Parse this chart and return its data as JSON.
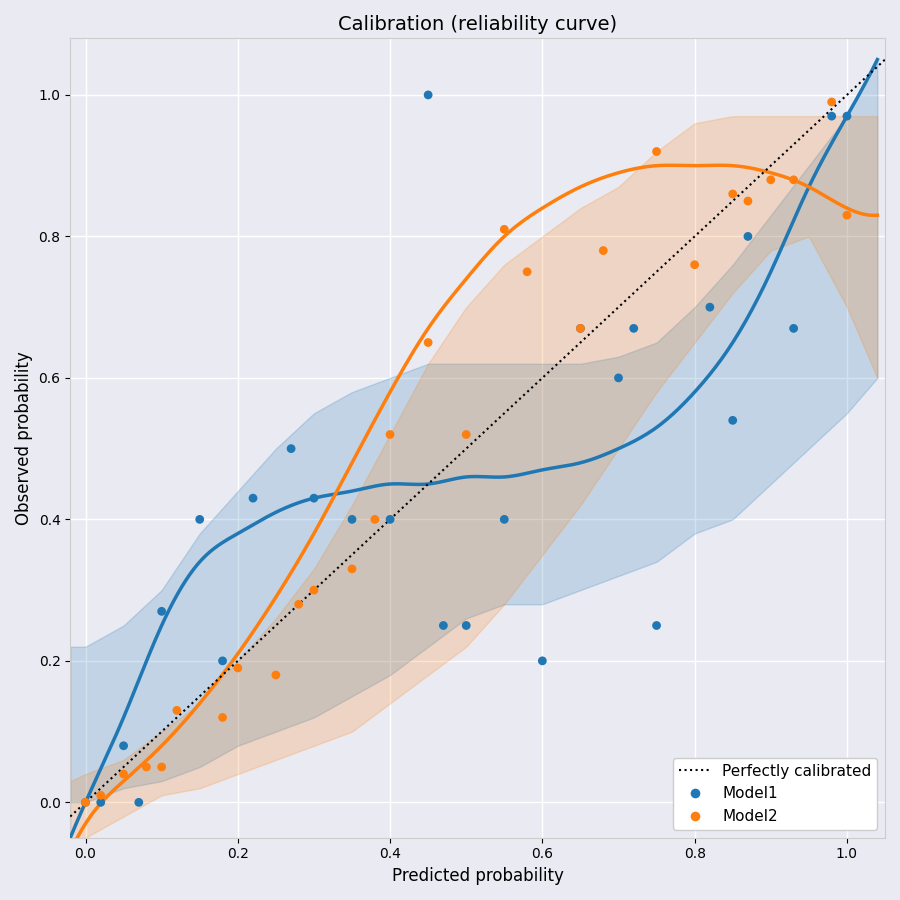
{
  "title": "Calibration (reliability curve)",
  "xlabel": "Predicted probability",
  "ylabel": "Observed probability",
  "model1_points": [
    [
      0.0,
      0.0
    ],
    [
      0.02,
      0.0
    ],
    [
      0.05,
      0.08
    ],
    [
      0.07,
      0.0
    ],
    [
      0.1,
      0.27
    ],
    [
      0.15,
      0.4
    ],
    [
      0.18,
      0.2
    ],
    [
      0.22,
      0.43
    ],
    [
      0.27,
      0.5
    ],
    [
      0.3,
      0.43
    ],
    [
      0.35,
      0.4
    ],
    [
      0.4,
      0.4
    ],
    [
      0.45,
      1.0
    ],
    [
      0.47,
      0.25
    ],
    [
      0.5,
      0.25
    ],
    [
      0.55,
      0.4
    ],
    [
      0.6,
      0.2
    ],
    [
      0.65,
      0.67
    ],
    [
      0.7,
      0.6
    ],
    [
      0.72,
      0.67
    ],
    [
      0.75,
      0.25
    ],
    [
      0.82,
      0.7
    ],
    [
      0.85,
      0.54
    ],
    [
      0.87,
      0.8
    ],
    [
      0.93,
      0.67
    ],
    [
      0.98,
      0.97
    ],
    [
      1.0,
      0.97
    ]
  ],
  "model2_points": [
    [
      0.0,
      0.0
    ],
    [
      0.02,
      0.01
    ],
    [
      0.05,
      0.04
    ],
    [
      0.08,
      0.05
    ],
    [
      0.1,
      0.05
    ],
    [
      0.12,
      0.13
    ],
    [
      0.18,
      0.12
    ],
    [
      0.2,
      0.19
    ],
    [
      0.25,
      0.18
    ],
    [
      0.28,
      0.28
    ],
    [
      0.3,
      0.3
    ],
    [
      0.35,
      0.33
    ],
    [
      0.38,
      0.4
    ],
    [
      0.4,
      0.52
    ],
    [
      0.45,
      0.65
    ],
    [
      0.5,
      0.52
    ],
    [
      0.55,
      0.81
    ],
    [
      0.58,
      0.75
    ],
    [
      0.65,
      0.67
    ],
    [
      0.68,
      0.78
    ],
    [
      0.75,
      0.92
    ],
    [
      0.8,
      0.76
    ],
    [
      0.85,
      0.86
    ],
    [
      0.87,
      0.85
    ],
    [
      0.9,
      0.88
    ],
    [
      0.93,
      0.88
    ],
    [
      0.98,
      0.99
    ],
    [
      1.0,
      0.83
    ]
  ],
  "model1_curve_x": [
    -0.02,
    0.0,
    0.05,
    0.1,
    0.15,
    0.2,
    0.25,
    0.3,
    0.35,
    0.4,
    0.45,
    0.5,
    0.55,
    0.6,
    0.65,
    0.7,
    0.75,
    0.8,
    0.85,
    0.9,
    0.95,
    1.0,
    1.04
  ],
  "model1_curve_y": [
    -0.05,
    0.0,
    0.12,
    0.25,
    0.34,
    0.38,
    0.41,
    0.43,
    0.44,
    0.45,
    0.45,
    0.46,
    0.46,
    0.47,
    0.48,
    0.5,
    0.53,
    0.58,
    0.65,
    0.75,
    0.87,
    0.97,
    1.05
  ],
  "model2_curve_x": [
    -0.02,
    0.0,
    0.05,
    0.1,
    0.15,
    0.2,
    0.25,
    0.3,
    0.35,
    0.4,
    0.45,
    0.5,
    0.55,
    0.6,
    0.65,
    0.7,
    0.75,
    0.8,
    0.85,
    0.9,
    0.95,
    1.0,
    1.04
  ],
  "model2_curve_y": [
    -0.07,
    -0.03,
    0.03,
    0.08,
    0.14,
    0.21,
    0.29,
    0.38,
    0.48,
    0.58,
    0.67,
    0.74,
    0.8,
    0.84,
    0.87,
    0.89,
    0.9,
    0.9,
    0.9,
    0.89,
    0.87,
    0.84,
    0.83
  ],
  "model1_color": "#1f77b4",
  "model2_color": "#ff7f0e",
  "model1_fill_alpha": 0.2,
  "model2_fill_alpha": 0.2,
  "xlim": [
    -0.02,
    1.05
  ],
  "ylim": [
    -0.05,
    1.08
  ],
  "legend_loc": "lower right",
  "background_color": "#eaeaf2",
  "grid_color": "#ffffff",
  "marker_size": 40
}
